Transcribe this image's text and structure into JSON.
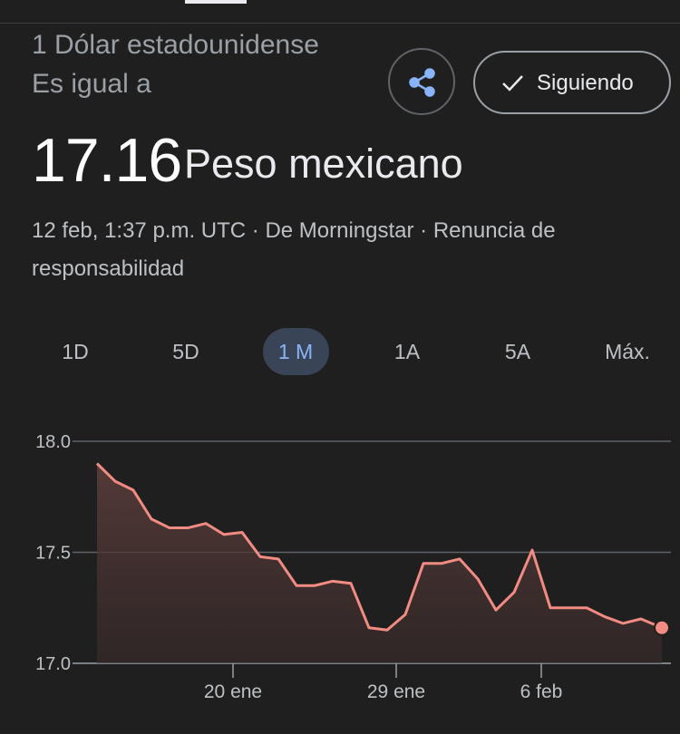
{
  "header": {
    "from": "1 Dólar estadounidense Es igual a",
    "rate": "17.16",
    "to": "Peso mexicano",
    "info": "12 feb, 1:37 p.m. UTC · De Morningstar · Renuncia de responsabilidad",
    "follow_button": "Siguiendo"
  },
  "tabs": [
    "1D",
    "5D",
    "1 M",
    "1A",
    "5A",
    "Máx."
  ],
  "selected_tab": 2,
  "chart_data": {
    "type": "line",
    "color": "#f28b82",
    "grid": true,
    "x": [
      12.5,
      13.5,
      14.5,
      15.5,
      16.5,
      17.5,
      18.5,
      19.5,
      20.5,
      21.5,
      22.5,
      23.5,
      24.5,
      25.5,
      26.5,
      27.5,
      28.5,
      29.5,
      30.5,
      31.5,
      32.5,
      33.5,
      34.5,
      35.5,
      36.5,
      37.5,
      38.5,
      39.5,
      40.5,
      41.5,
      42.5,
      43.65
    ],
    "values": [
      17.9,
      17.82,
      17.78,
      17.65,
      17.61,
      17.61,
      17.63,
      17.58,
      17.59,
      17.48,
      17.47,
      17.35,
      17.35,
      17.37,
      17.36,
      17.16,
      17.15,
      17.22,
      17.45,
      17.45,
      17.47,
      17.38,
      17.24,
      17.32,
      17.51,
      17.25,
      17.25,
      17.25,
      17.21,
      17.18,
      17.2,
      17.16
    ],
    "xlim": [
      11.15,
      44.15
    ],
    "ylim": [
      17,
      18
    ],
    "xticks": [
      {
        "value": 20,
        "label": "20 ene"
      },
      {
        "value": 29,
        "label": "29 ene"
      },
      {
        "value": 37,
        "label": "6 feb"
      }
    ],
    "yticks": [
      {
        "value": 17,
        "label": "17.0"
      },
      {
        "value": 17.5,
        "label": "17.5"
      },
      {
        "value": 18,
        "label": "18.0"
      }
    ]
  }
}
